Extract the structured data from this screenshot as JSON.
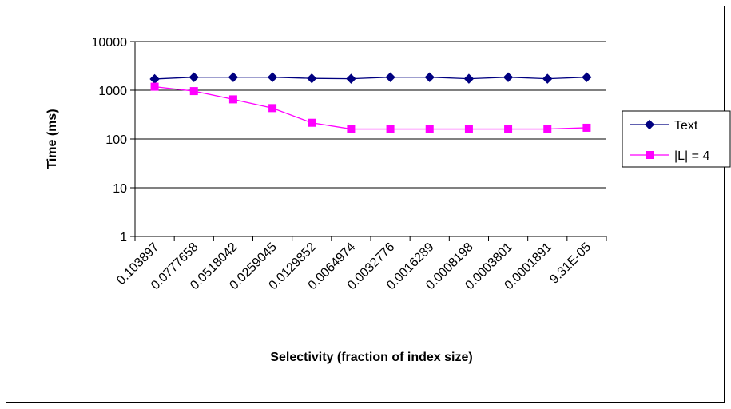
{
  "chart_data": {
    "type": "line",
    "xlabel": "Selectivity (fraction of index size)",
    "ylabel": "Time (ms)",
    "y_scale": "log",
    "ylim": [
      1,
      10000
    ],
    "y_ticks": [
      "1",
      "10",
      "100",
      "1000",
      "10000"
    ],
    "grid": "horizontal major gridlines",
    "legend_position": "right",
    "categories": [
      "0.103897",
      "0.0777658",
      "0.0518042",
      "0.0259045",
      "0.0129852",
      "0.0064974",
      "0.0032776",
      "0.0016289",
      "0.0008198",
      "0.0003801",
      "0.0001891",
      "9.31E-05"
    ],
    "series": [
      {
        "name": "Text",
        "color": "#000080",
        "marker": "diamond",
        "values": [
          1700,
          1850,
          1850,
          1850,
          1750,
          1720,
          1850,
          1850,
          1720,
          1850,
          1720,
          1850
        ]
      },
      {
        "name": "|L| = 4",
        "color": "#ff00ff",
        "marker": "square",
        "values": [
          1180,
          960,
          650,
          430,
          215,
          160,
          160,
          160,
          160,
          160,
          160,
          170
        ]
      }
    ]
  }
}
